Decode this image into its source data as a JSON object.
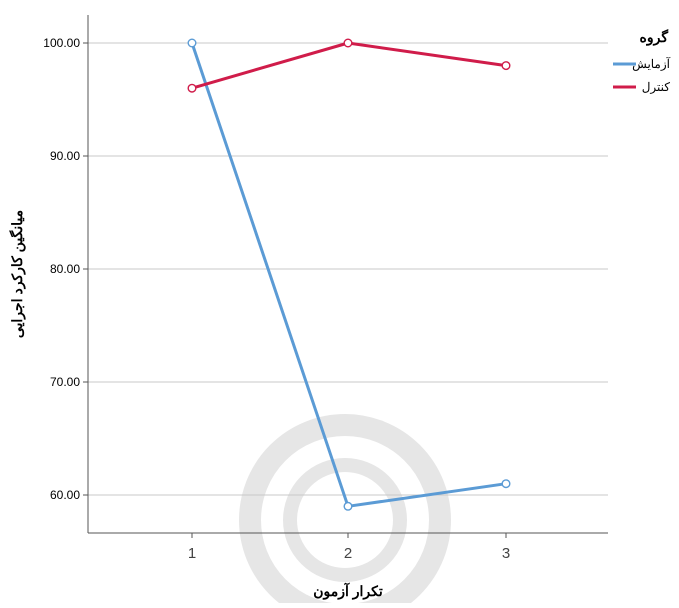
{
  "chart_data": {
    "type": "line",
    "title": "",
    "xlabel": "تکرار آزمون",
    "ylabel": "میانگین کارکرد اجرایی",
    "categories": [
      "1",
      "2",
      "3"
    ],
    "ylim": [
      57,
      102
    ],
    "yticks": [
      "60.00",
      "70.00",
      "80.00",
      "90.00",
      "100.00"
    ],
    "ytick_values": [
      60,
      70,
      80,
      90,
      100
    ],
    "grid": true,
    "legend": {
      "title": "گروه",
      "placement": "top-right"
    },
    "series": [
      {
        "name": "آزمایش",
        "color": "#5b9bd5",
        "values": [
          100,
          59,
          61
        ]
      },
      {
        "name": "کنترل",
        "color": "#d01c4a",
        "values": [
          96,
          100,
          98
        ]
      }
    ]
  }
}
